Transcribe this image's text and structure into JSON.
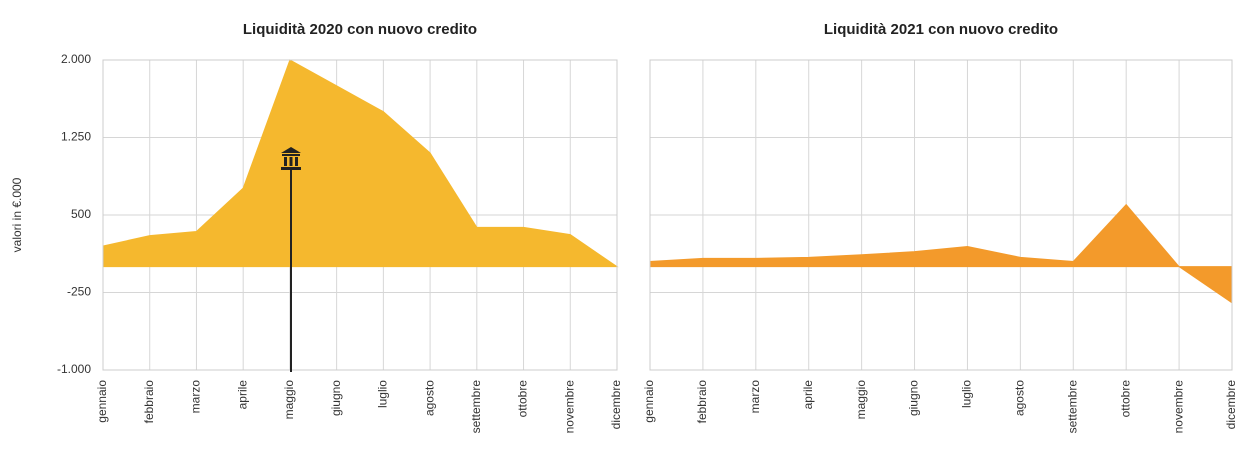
{
  "chart_data": [
    {
      "type": "area",
      "title": "Liquidità 2020 con nuovo credito",
      "y_label": "valori in €.000",
      "categories": [
        "gennaio",
        "febbraio",
        "marzo",
        "aprile",
        "maggio",
        "giugno",
        "luglio",
        "agosto",
        "settembre",
        "ottobre",
        "novembre",
        "dicembre"
      ],
      "values": [
        200,
        300,
        340,
        760,
        2000,
        1750,
        1500,
        1100,
        380,
        380,
        310,
        0
      ],
      "color": "#f5b82e",
      "ylim": [
        -1000,
        2000
      ],
      "yticks": [
        {
          "value": -1000,
          "label": "-1.000"
        },
        -250,
        500,
        {
          "value": 1250,
          "label": "1.250"
        },
        {
          "value": 2000,
          "label": "2.000"
        }
      ],
      "grid": true
    },
    {
      "type": "area",
      "title": "Liquidità 2021 con nuovo credito",
      "categories": [
        "gennaio",
        "febbraio",
        "marzo",
        "aprile",
        "maggio",
        "giugno",
        "luglio",
        "agosto",
        "settembre",
        "ottobre",
        "novembre",
        "dicembre"
      ],
      "values": [
        50,
        80,
        80,
        90,
        115,
        145,
        195,
        90,
        50,
        600,
        0,
        -350
      ],
      "color": "#f39a2b",
      "ylim": [
        -1000,
        2000
      ],
      "yticks": [
        -1000,
        -250,
        500,
        1250,
        2000
      ],
      "grid": true
    }
  ]
}
